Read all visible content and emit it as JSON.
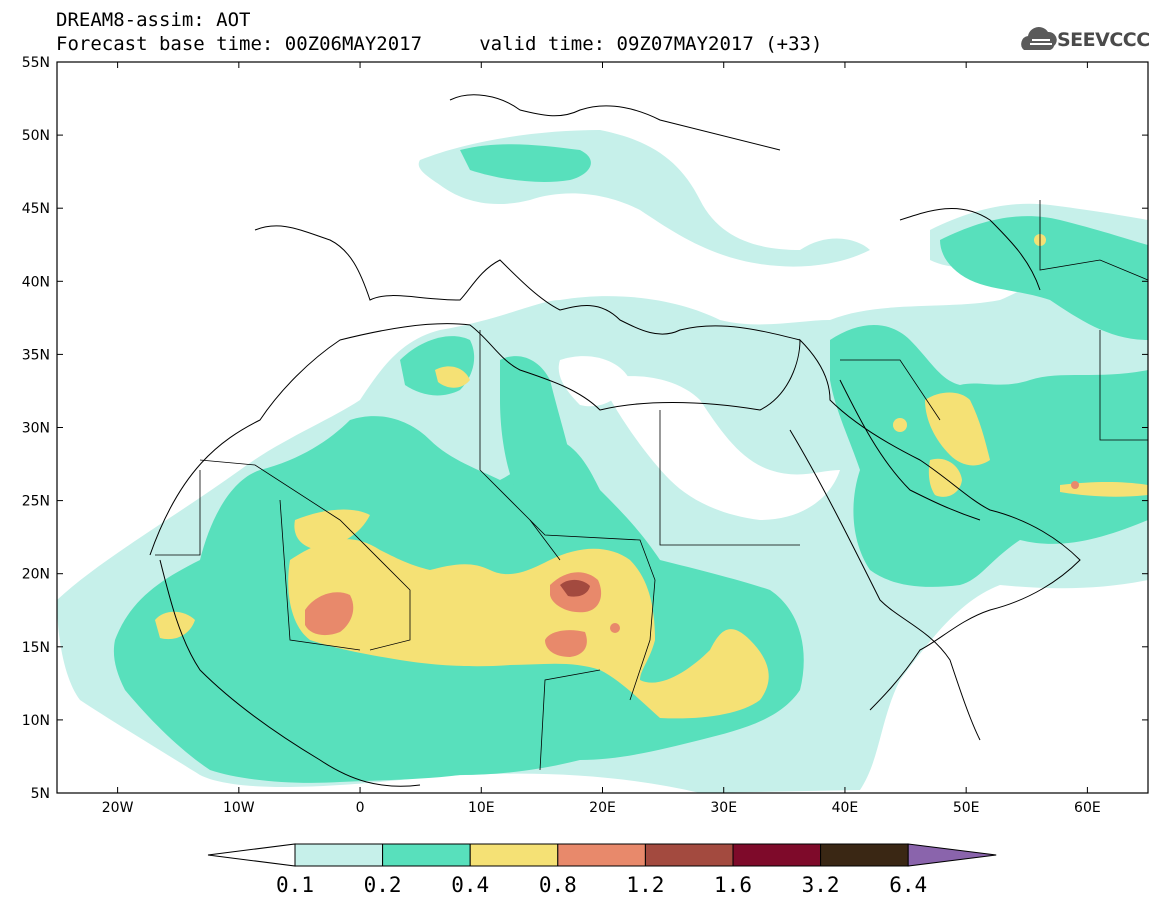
{
  "title_line1": "DREAM8-assim: AOT",
  "title_line2": "Forecast base time: 00Z06MAY2017     valid time: 09Z07MAY2017 (+33)",
  "logo": {
    "text": "SEEVCCC",
    "icon": "cloud-logo-icon"
  },
  "map": {
    "lat_labels": [
      "55N",
      "50N",
      "45N",
      "40N",
      "35N",
      "30N",
      "25N",
      "20N",
      "15N",
      "10N",
      "5N"
    ],
    "lon_labels": [
      "20W",
      "10W",
      "0",
      "10E",
      "20E",
      "30E",
      "40E",
      "50E",
      "60E"
    ]
  },
  "colorbar": {
    "labels": [
      "0.1",
      "0.2",
      "0.4",
      "0.8",
      "1.2",
      "1.6",
      "3.2",
      "6.4"
    ],
    "colors": [
      "#ffffff",
      "#c6f0ea",
      "#58e0bc",
      "#f5e175",
      "#e8896b",
      "#a34a3f",
      "#7e0a2a",
      "#3a2714",
      "#8a64ac"
    ]
  }
}
